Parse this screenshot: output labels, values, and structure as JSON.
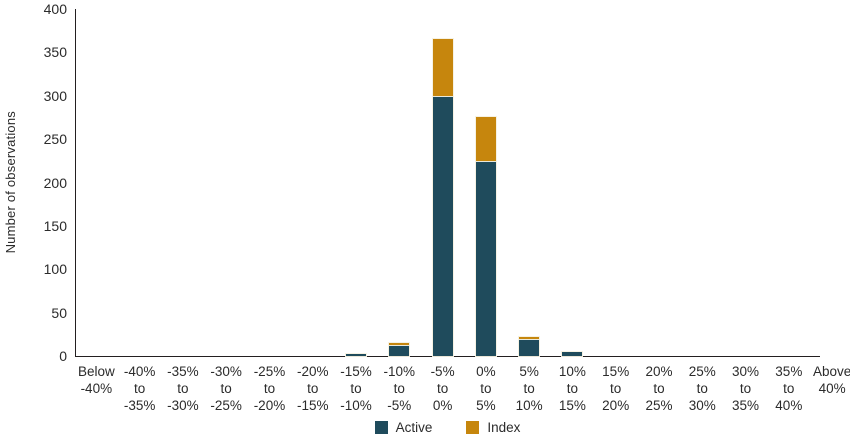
{
  "chart_data": {
    "type": "bar",
    "stacked": true,
    "title": "",
    "xlabel": "",
    "ylabel": "Number of observations",
    "ylim": [
      0,
      400
    ],
    "yticks": [
      0,
      50,
      100,
      150,
      200,
      250,
      300,
      350,
      400
    ],
    "grid": false,
    "legend_position": "bottom-center",
    "categories": [
      [
        "Below",
        "-40%"
      ],
      [
        "-40%",
        "to",
        "-35%"
      ],
      [
        "-35%",
        "to",
        "-30%"
      ],
      [
        "-30%",
        "to",
        "-25%"
      ],
      [
        "-25%",
        "to",
        "-20%"
      ],
      [
        "-20%",
        "to",
        "-15%"
      ],
      [
        "-15%",
        "to",
        "-10%"
      ],
      [
        "-10%",
        "to",
        "-5%"
      ],
      [
        "-5%",
        "to",
        "0%"
      ],
      [
        "0%",
        "to",
        "5%"
      ],
      [
        "5%",
        "to",
        "10%"
      ],
      [
        "10%",
        "to",
        "15%"
      ],
      [
        "15%",
        "to",
        "20%"
      ],
      [
        "20%",
        "to",
        "25%"
      ],
      [
        "25%",
        "to",
        "30%"
      ],
      [
        "30%",
        "to",
        "35%"
      ],
      [
        "35%",
        "to",
        "40%"
      ],
      [
        "Above",
        "40%"
      ]
    ],
    "series": [
      {
        "name": "Active",
        "color": "#1F4B5C",
        "values": [
          0,
          0,
          0,
          0,
          0,
          0,
          2,
          13,
          300,
          225,
          20,
          5,
          0,
          0,
          0,
          0,
          0,
          0
        ]
      },
      {
        "name": "Index",
        "color": "#C6860D",
        "values": [
          0,
          0,
          0,
          0,
          0,
          0,
          0,
          2,
          65,
          50,
          2,
          0,
          0,
          0,
          0,
          0,
          0,
          0
        ]
      }
    ],
    "axis_color": "#231F20",
    "text_color": "#2B2B2B",
    "bar_outline_color": "#F6F1E2"
  }
}
